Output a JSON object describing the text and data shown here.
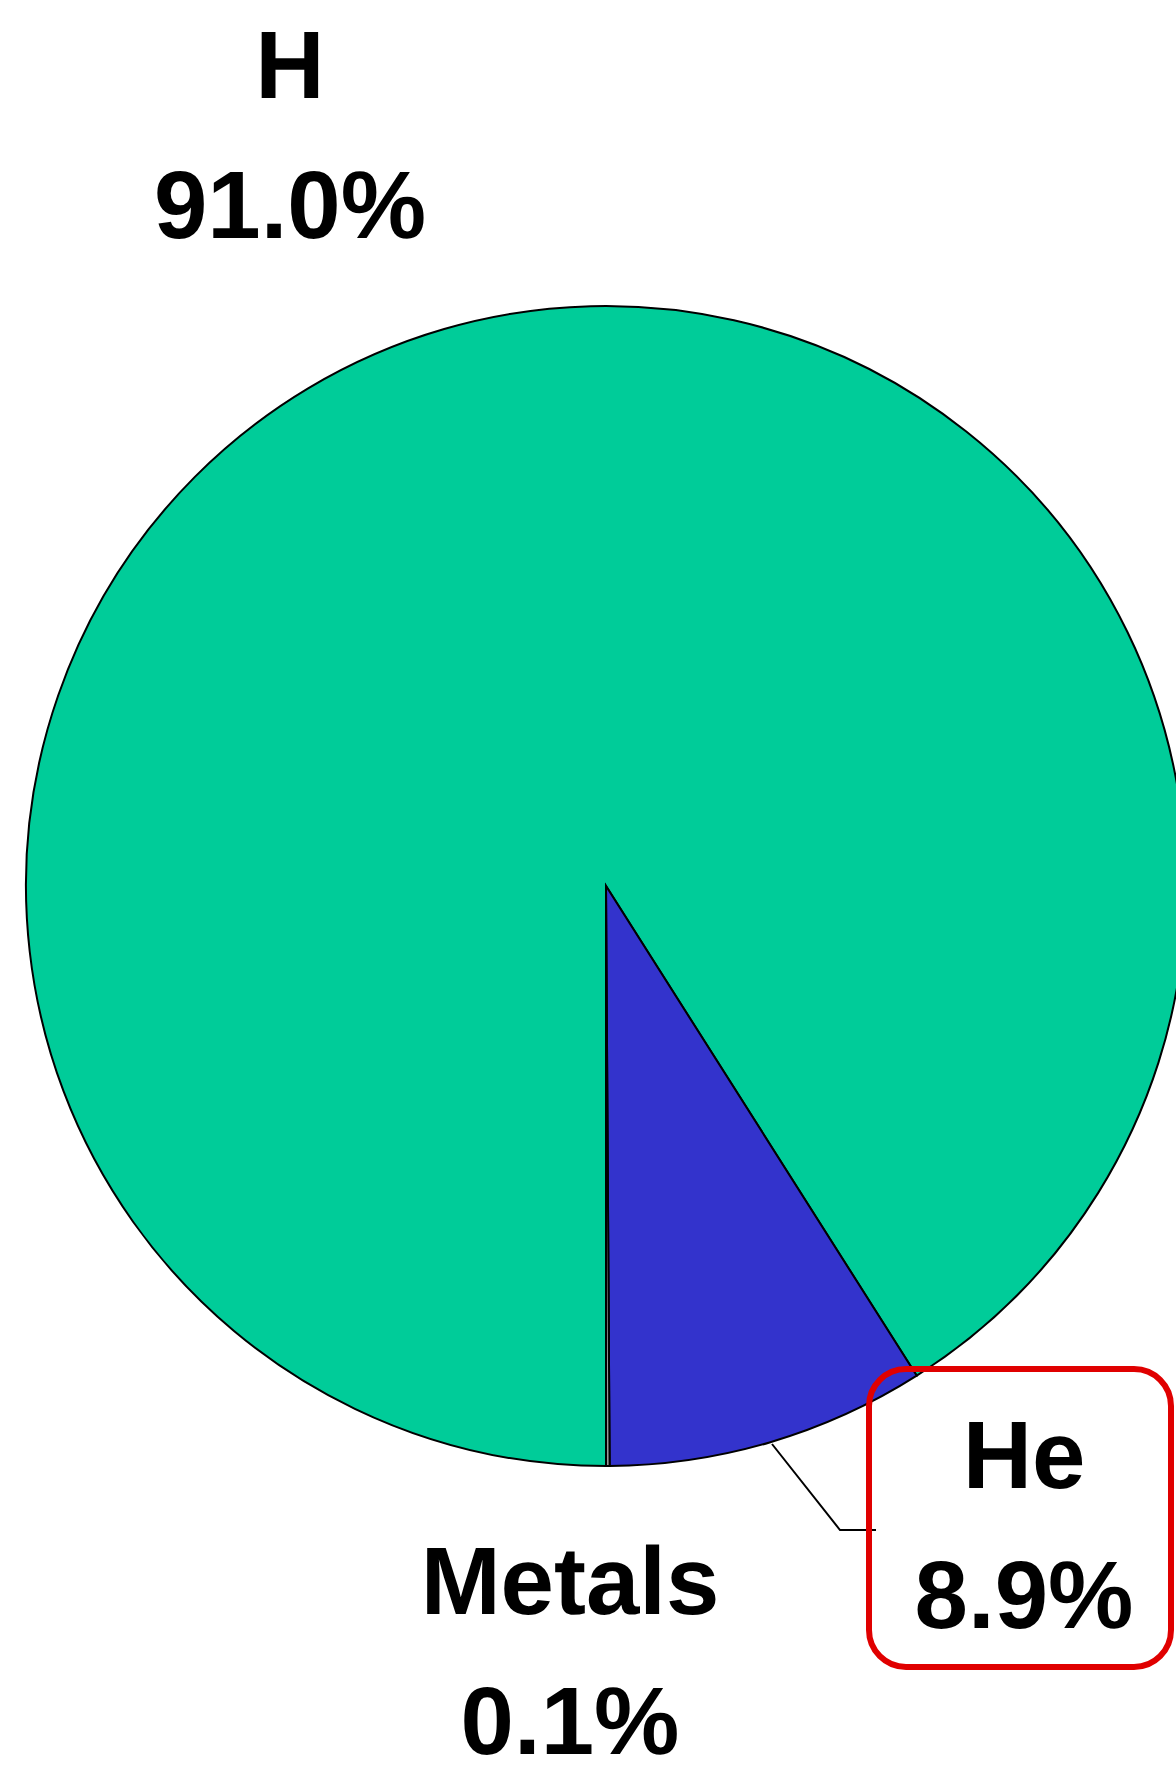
{
  "chart_data": {
    "type": "pie",
    "categories": [
      "H",
      "He",
      "Metals"
    ],
    "values": [
      91.0,
      8.9,
      0.1
    ],
    "value_labels": [
      "91.0%",
      "8.9%",
      "0.1%"
    ],
    "colors": [
      "#00cc99",
      "#3333cc",
      "#999999"
    ]
  }
}
